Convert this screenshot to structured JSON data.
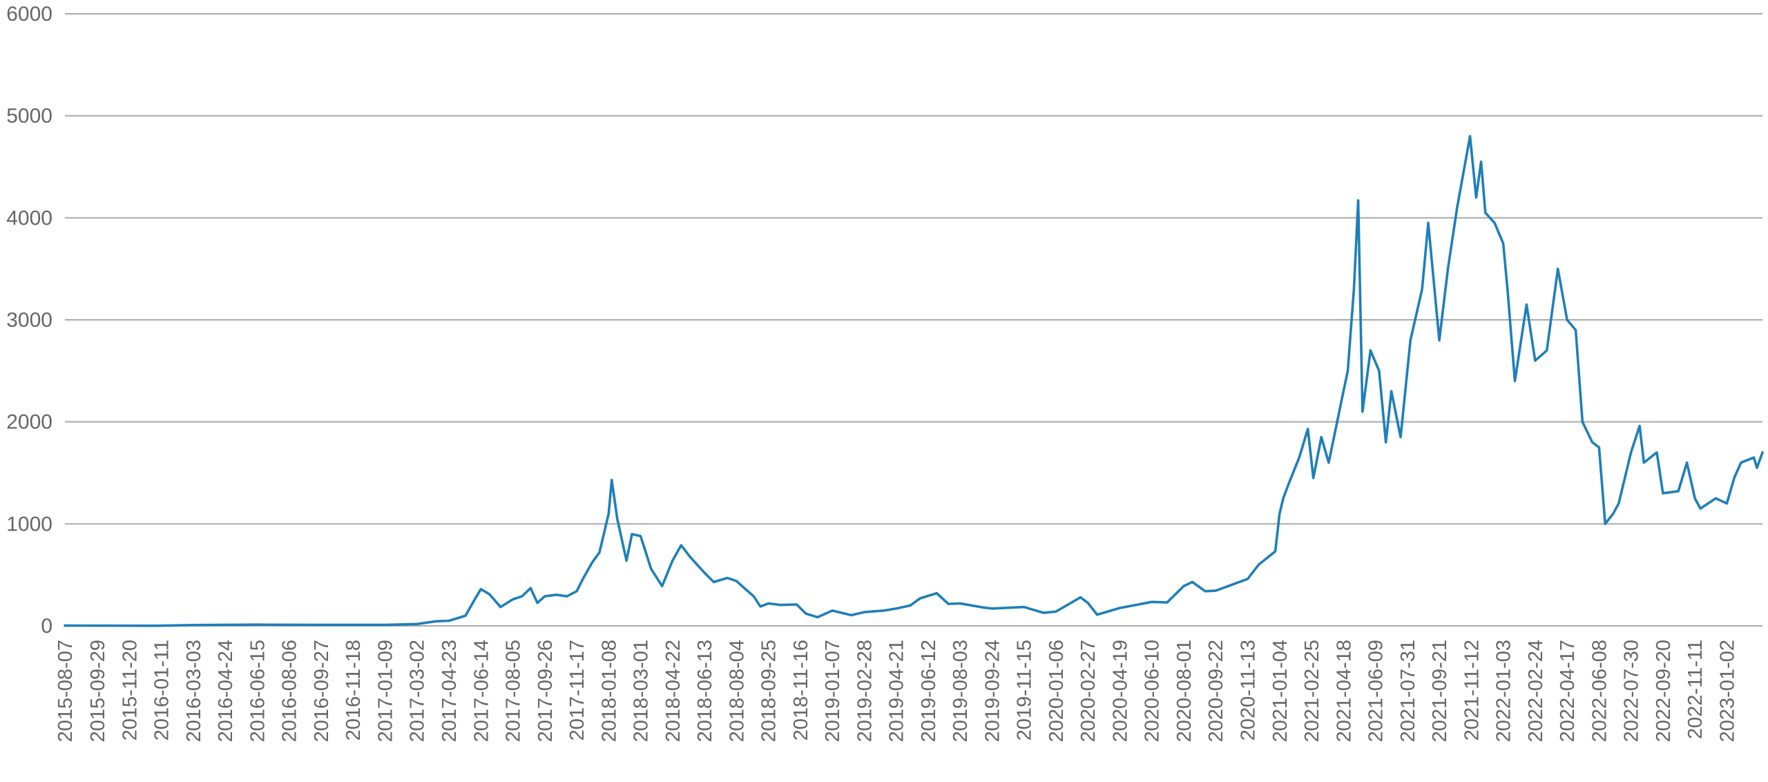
{
  "chart_data": {
    "type": "line",
    "title": "",
    "xlabel": "",
    "ylabel": "",
    "ylim": [
      0,
      6000
    ],
    "grid": true,
    "legend": "none",
    "x_axis": {
      "type": "date",
      "start": "2015-08-07",
      "end": "2023-03-01",
      "tick_labels": [
        "2015-08-07",
        "2015-09-29",
        "2015-11-20",
        "2016-01-11",
        "2016-03-03",
        "2016-04-24",
        "2016-06-15",
        "2016-08-06",
        "2016-09-27",
        "2016-11-18",
        "2017-01-09",
        "2017-03-02",
        "2017-04-23",
        "2017-06-14",
        "2017-08-05",
        "2017-09-26",
        "2017-11-17",
        "2018-01-08",
        "2018-03-01",
        "2018-04-22",
        "2018-06-13",
        "2018-08-04",
        "2018-09-25",
        "2018-11-16",
        "2019-01-07",
        "2019-02-28",
        "2019-04-21",
        "2019-06-12",
        "2019-08-03",
        "2019-09-24",
        "2019-11-15",
        "2020-01-06",
        "2020-02-27",
        "2020-04-19",
        "2020-06-10",
        "2020-08-01",
        "2020-09-22",
        "2020-11-13",
        "2021-01-04",
        "2021-02-25",
        "2021-04-18",
        "2021-06-09",
        "2021-07-31",
        "2021-09-21",
        "2021-11-12",
        "2022-01-03",
        "2022-02-24",
        "2022-04-17",
        "2022-06-08",
        "2022-07-30",
        "2022-09-20",
        "2022-11-11",
        "2023-01-02"
      ]
    },
    "y_axis": {
      "ticks": [
        0,
        1000,
        2000,
        3000,
        4000,
        5000,
        6000
      ]
    },
    "series": [
      {
        "name": "",
        "color": "#1f7fb8",
        "points": [
          [
            "2015-08-07",
            3
          ],
          [
            "2016-01-01",
            1
          ],
          [
            "2016-03-03",
            8
          ],
          [
            "2016-06-15",
            12
          ],
          [
            "2016-09-27",
            10
          ],
          [
            "2017-01-09",
            10
          ],
          [
            "2017-03-02",
            18
          ],
          [
            "2017-04-02",
            45
          ],
          [
            "2017-04-23",
            50
          ],
          [
            "2017-05-20",
            100
          ],
          [
            "2017-06-05",
            270
          ],
          [
            "2017-06-14",
            360
          ],
          [
            "2017-06-28",
            310
          ],
          [
            "2017-07-16",
            185
          ],
          [
            "2017-08-05",
            260
          ],
          [
            "2017-08-20",
            290
          ],
          [
            "2017-09-03",
            370
          ],
          [
            "2017-09-14",
            225
          ],
          [
            "2017-09-26",
            290
          ],
          [
            "2017-10-15",
            305
          ],
          [
            "2017-11-01",
            290
          ],
          [
            "2017-11-17",
            340
          ],
          [
            "2017-11-28",
            470
          ],
          [
            "2017-12-12",
            620
          ],
          [
            "2017-12-24",
            720
          ],
          [
            "2018-01-08",
            1100
          ],
          [
            "2018-01-13",
            1430
          ],
          [
            "2018-01-22",
            1050
          ],
          [
            "2018-02-06",
            640
          ],
          [
            "2018-02-15",
            900
          ],
          [
            "2018-03-01",
            880
          ],
          [
            "2018-03-18",
            560
          ],
          [
            "2018-04-05",
            390
          ],
          [
            "2018-04-22",
            640
          ],
          [
            "2018-05-06",
            790
          ],
          [
            "2018-05-20",
            680
          ],
          [
            "2018-06-13",
            520
          ],
          [
            "2018-06-28",
            430
          ],
          [
            "2018-07-20",
            470
          ],
          [
            "2018-08-04",
            440
          ],
          [
            "2018-08-15",
            380
          ],
          [
            "2018-09-01",
            290
          ],
          [
            "2018-09-12",
            190
          ],
          [
            "2018-09-25",
            220
          ],
          [
            "2018-10-15",
            205
          ],
          [
            "2018-11-10",
            210
          ],
          [
            "2018-11-25",
            120
          ],
          [
            "2018-12-14",
            85
          ],
          [
            "2019-01-07",
            150
          ],
          [
            "2019-02-07",
            105
          ],
          [
            "2019-02-28",
            135
          ],
          [
            "2019-04-01",
            150
          ],
          [
            "2019-04-21",
            170
          ],
          [
            "2019-05-14",
            200
          ],
          [
            "2019-05-30",
            270
          ],
          [
            "2019-06-26",
            320
          ],
          [
            "2019-07-15",
            215
          ],
          [
            "2019-08-03",
            220
          ],
          [
            "2019-09-10",
            180
          ],
          [
            "2019-09-24",
            170
          ],
          [
            "2019-11-15",
            185
          ],
          [
            "2019-12-17",
            128
          ],
          [
            "2020-01-06",
            140
          ],
          [
            "2020-02-15",
            280
          ],
          [
            "2020-02-27",
            225
          ],
          [
            "2020-03-13",
            110
          ],
          [
            "2020-04-19",
            175
          ],
          [
            "2020-06-10",
            235
          ],
          [
            "2020-07-05",
            230
          ],
          [
            "2020-08-01",
            390
          ],
          [
            "2020-08-15",
            430
          ],
          [
            "2020-09-05",
            340
          ],
          [
            "2020-09-22",
            345
          ],
          [
            "2020-11-13",
            460
          ],
          [
            "2020-12-01",
            600
          ],
          [
            "2020-12-28",
            730
          ],
          [
            "2021-01-04",
            1100
          ],
          [
            "2021-01-10",
            1250
          ],
          [
            "2021-01-18",
            1380
          ],
          [
            "2021-02-05",
            1650
          ],
          [
            "2021-02-19",
            1930
          ],
          [
            "2021-02-28",
            1450
          ],
          [
            "2021-03-13",
            1850
          ],
          [
            "2021-03-25",
            1600
          ],
          [
            "2021-04-18",
            2300
          ],
          [
            "2021-04-25",
            2500
          ],
          [
            "2021-05-05",
            3300
          ],
          [
            "2021-05-12",
            4170
          ],
          [
            "2021-05-19",
            2100
          ],
          [
            "2021-06-01",
            2700
          ],
          [
            "2021-06-15",
            2500
          ],
          [
            "2021-06-26",
            1800
          ],
          [
            "2021-07-05",
            2300
          ],
          [
            "2021-07-20",
            1850
          ],
          [
            "2021-08-05",
            2800
          ],
          [
            "2021-08-24",
            3300
          ],
          [
            "2021-09-03",
            3950
          ],
          [
            "2021-09-21",
            2800
          ],
          [
            "2021-10-05",
            3500
          ],
          [
            "2021-10-20",
            4100
          ],
          [
            "2021-11-10",
            4800
          ],
          [
            "2021-11-20",
            4200
          ],
          [
            "2021-11-28",
            4550
          ],
          [
            "2021-12-05",
            4050
          ],
          [
            "2021-12-20",
            3950
          ],
          [
            "2022-01-03",
            3750
          ],
          [
            "2022-01-10",
            3300
          ],
          [
            "2022-01-22",
            2400
          ],
          [
            "2022-02-10",
            3150
          ],
          [
            "2022-02-24",
            2600
          ],
          [
            "2022-03-15",
            2700
          ],
          [
            "2022-04-02",
            3500
          ],
          [
            "2022-04-17",
            3000
          ],
          [
            "2022-05-01",
            2900
          ],
          [
            "2022-05-12",
            2000
          ],
          [
            "2022-05-28",
            1800
          ],
          [
            "2022-06-08",
            1750
          ],
          [
            "2022-06-18",
            1000
          ],
          [
            "2022-07-01",
            1100
          ],
          [
            "2022-07-10",
            1200
          ],
          [
            "2022-07-30",
            1700
          ],
          [
            "2022-08-13",
            1960
          ],
          [
            "2022-08-20",
            1600
          ],
          [
            "2022-09-10",
            1700
          ],
          [
            "2022-09-20",
            1300
          ],
          [
            "2022-10-15",
            1320
          ],
          [
            "2022-10-29",
            1600
          ],
          [
            "2022-11-11",
            1250
          ],
          [
            "2022-11-20",
            1150
          ],
          [
            "2022-12-15",
            1250
          ],
          [
            "2023-01-02",
            1200
          ],
          [
            "2023-01-14",
            1450
          ],
          [
            "2023-01-25",
            1600
          ],
          [
            "2023-02-15",
            1650
          ],
          [
            "2023-02-20",
            1550
          ],
          [
            "2023-03-01",
            1700
          ]
        ]
      }
    ]
  }
}
